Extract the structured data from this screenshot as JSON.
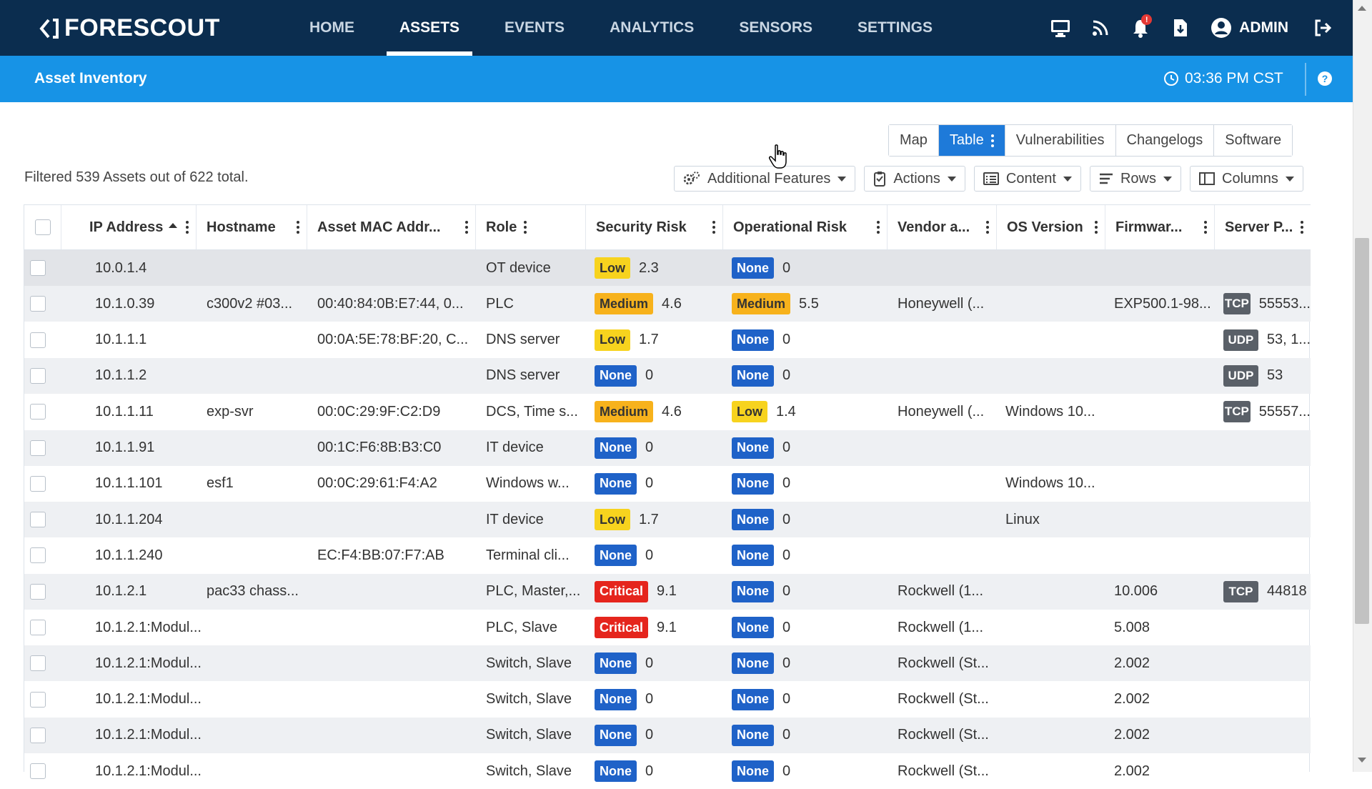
{
  "app": {
    "logo_text": "FORESCOUT",
    "brand_color": "#0b2d4f",
    "accent_color": "#1793e6"
  },
  "nav": {
    "items": [
      {
        "label": "HOME",
        "active": false
      },
      {
        "label": "ASSETS",
        "active": true
      },
      {
        "label": "EVENTS",
        "active": false
      },
      {
        "label": "ANALYTICS",
        "active": false
      },
      {
        "label": "SENSORS",
        "active": false
      },
      {
        "label": "SETTINGS",
        "active": false
      }
    ],
    "icons": [
      "monitor-icon",
      "rss-feed-icon",
      "bell-icon",
      "download-file-icon"
    ],
    "notification_badge": "!",
    "user_label": "ADMIN"
  },
  "subheader": {
    "title": "Asset Inventory",
    "time": "03:36 PM CST"
  },
  "view_tabs": [
    {
      "label": "Map",
      "active": false
    },
    {
      "label": "Table",
      "active": true
    },
    {
      "label": "Vulnerabilities",
      "active": false
    },
    {
      "label": "Changelogs",
      "active": false
    },
    {
      "label": "Software",
      "active": false
    }
  ],
  "filter_summary": "Filtered 539 Assets out of 622 total.",
  "toolbar": {
    "additional_features": "Additional Features",
    "actions": "Actions",
    "content": "Content",
    "rows": "Rows",
    "columns": "Columns"
  },
  "table": {
    "columns": [
      "IP Address",
      "Hostname",
      "Asset MAC Addr...",
      "Role",
      "Security Risk",
      "Operational Risk",
      "Vendor a...",
      "OS Version",
      "Firmwar...",
      "Server P..."
    ],
    "rows": [
      {
        "ip": "10.0.1.4",
        "hostname": "",
        "mac": "",
        "role": "OT device",
        "role_extra": "",
        "sec_level": "Low",
        "sec_score": "2.3",
        "op_level": "None",
        "op_score": "0",
        "vendor": "",
        "os": "",
        "firmware": "",
        "proto": "",
        "ports": ""
      },
      {
        "ip": "10.1.0.39",
        "hostname": "c300v2 #03...",
        "mac": "00:40:84:0B:E7:44, 0...",
        "role": "PLC",
        "role_extra": "",
        "sec_level": "Medium",
        "sec_score": "4.6",
        "op_level": "Medium",
        "op_score": "5.5",
        "vendor": "Honeywell (...",
        "os": "",
        "firmware": "EXP500.1-98...",
        "proto": "TCP",
        "ports": "55553..."
      },
      {
        "ip": "10.1.1.1",
        "hostname": "",
        "mac": "00:0A:5E:78:BF:20, C...",
        "role": "DNS server",
        "role_extra": "",
        "sec_level": "Low",
        "sec_score": "1.7",
        "op_level": "None",
        "op_score": "0",
        "vendor": "",
        "os": "",
        "firmware": "",
        "proto": "UDP",
        "ports": "53, 1..."
      },
      {
        "ip": "10.1.1.2",
        "hostname": "",
        "mac": "",
        "role": "DNS server",
        "role_extra": "",
        "sec_level": "None",
        "sec_score": "0",
        "op_level": "None",
        "op_score": "0",
        "vendor": "",
        "os": "",
        "firmware": "",
        "proto": "UDP",
        "ports": "53"
      },
      {
        "ip": "10.1.1.11",
        "hostname": "exp-svr",
        "mac": "00:0C:29:9F:C2:D9",
        "role": "DCS, Time s...",
        "role_extra": "",
        "sec_level": "Medium",
        "sec_score": "4.6",
        "op_level": "Low",
        "op_score": "1.4",
        "vendor": "Honeywell (...",
        "os": "Windows 10...",
        "firmware": "",
        "proto": "TCP",
        "ports": "55557..."
      },
      {
        "ip": "10.1.1.91",
        "hostname": "",
        "mac": "00:1C:F6:8B:B3:C0",
        "role": "IT device",
        "role_extra": "",
        "sec_level": "None",
        "sec_score": "0",
        "op_level": "None",
        "op_score": "0",
        "vendor": "",
        "os": "",
        "firmware": "",
        "proto": "",
        "ports": ""
      },
      {
        "ip": "10.1.1.101",
        "hostname": "esf1",
        "mac": "00:0C:29:61:F4:A2",
        "role": "Windows w...",
        "role_extra": "",
        "sec_level": "None",
        "sec_score": "0",
        "op_level": "None",
        "op_score": "0",
        "vendor": "",
        "os": "Windows 10...",
        "firmware": "",
        "proto": "",
        "ports": ""
      },
      {
        "ip": "10.1.1.204",
        "hostname": "",
        "mac": "",
        "role": "IT device",
        "role_extra": "",
        "sec_level": "Low",
        "sec_score": "1.7",
        "op_level": "None",
        "op_score": "0",
        "vendor": "",
        "os": "Linux",
        "firmware": "",
        "proto": "",
        "ports": ""
      },
      {
        "ip": "10.1.1.240",
        "hostname": "",
        "mac": "EC:F4:BB:07:F7:AB",
        "role": "Terminal cli...",
        "role_extra": "",
        "sec_level": "None",
        "sec_score": "0",
        "op_level": "None",
        "op_score": "0",
        "vendor": "",
        "os": "",
        "firmware": "",
        "proto": "",
        "ports": ""
      },
      {
        "ip": "10.1.2.1",
        "hostname": "pac33 chass...",
        "mac": "",
        "role": "PLC",
        "role_extra": ", Master,...",
        "sec_level": "Critical",
        "sec_score": "9.1",
        "op_level": "None",
        "op_score": "0",
        "vendor": "Rockwell (1...",
        "os": "",
        "firmware": "10.006",
        "proto": "TCP",
        "ports": "44818"
      },
      {
        "ip": "10.1.2.1:Modul...",
        "hostname": "",
        "mac": "",
        "role": "PLC",
        "role_extra": ", Slave",
        "sec_level": "Critical",
        "sec_score": "9.1",
        "op_level": "None",
        "op_score": "0",
        "vendor": "Rockwell (1...",
        "os": "",
        "firmware": "5.008",
        "proto": "",
        "ports": ""
      },
      {
        "ip": "10.1.2.1:Modul...",
        "hostname": "",
        "mac": "",
        "role": "Switch",
        "role_extra": ", Slave",
        "sec_level": "None",
        "sec_score": "0",
        "op_level": "None",
        "op_score": "0",
        "vendor": "Rockwell (St...",
        "os": "",
        "firmware": "2.002",
        "proto": "",
        "ports": ""
      },
      {
        "ip": "10.1.2.1:Modul...",
        "hostname": "",
        "mac": "",
        "role": "Switch",
        "role_extra": ", Slave",
        "sec_level": "None",
        "sec_score": "0",
        "op_level": "None",
        "op_score": "0",
        "vendor": "Rockwell (St...",
        "os": "",
        "firmware": "2.002",
        "proto": "",
        "ports": ""
      },
      {
        "ip": "10.1.2.1:Modul...",
        "hostname": "",
        "mac": "",
        "role": "Switch",
        "role_extra": ", Slave",
        "sec_level": "None",
        "sec_score": "0",
        "op_level": "None",
        "op_score": "0",
        "vendor": "Rockwell (St...",
        "os": "",
        "firmware": "2.002",
        "proto": "",
        "ports": ""
      },
      {
        "ip": "10.1.2.1:Modul...",
        "hostname": "",
        "mac": "",
        "role": "Switch",
        "role_extra": ", Slave",
        "sec_level": "None",
        "sec_score": "0",
        "op_level": "None",
        "op_score": "0",
        "vendor": "Rockwell (St...",
        "os": "",
        "firmware": "2.002",
        "proto": "",
        "ports": ""
      }
    ]
  },
  "colors": {
    "risk_low": "#f7d31e",
    "risk_medium": "#f7b21c",
    "risk_none": "#1f62c8",
    "risk_critical": "#e5251d",
    "protocol_badge": "#5a6068"
  }
}
